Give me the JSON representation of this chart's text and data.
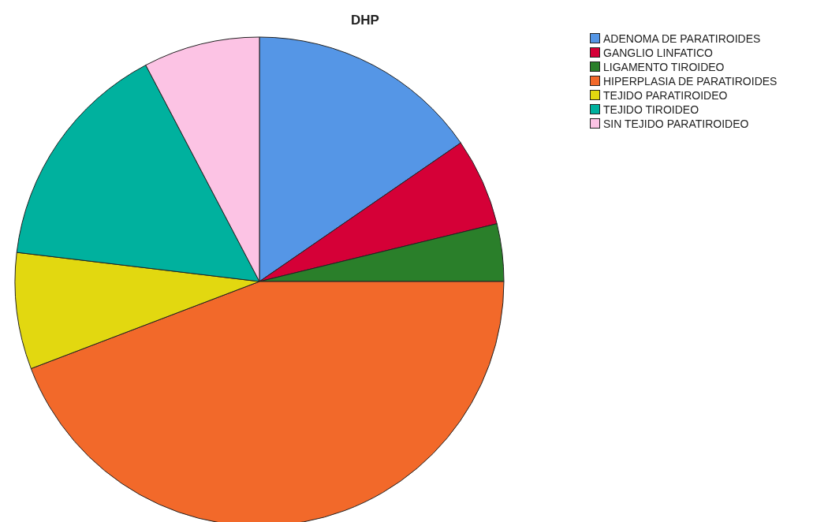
{
  "chart_data": {
    "type": "pie",
    "title": "DHP",
    "categories": [
      "ADENOMA DE PARATIROIDES",
      "GANGLIO LINFATICO",
      "LIGAMENTO TIROIDEO",
      "HIPERPLASIA DE PARATIROIDES",
      "TEJIDO PARATIROIDEO",
      "TEJIDO TIROIDEO",
      "SIN TEJIDO PARATIROIDEO"
    ],
    "values": [
      15.4,
      5.8,
      3.8,
      44.2,
      7.7,
      15.4,
      7.7
    ],
    "colors": [
      "#5596e6",
      "#d50037",
      "#2a7f2a",
      "#f2692a",
      "#e2d810",
      "#00b19e",
      "#fcc3e4"
    ],
    "legend": "top right"
  }
}
